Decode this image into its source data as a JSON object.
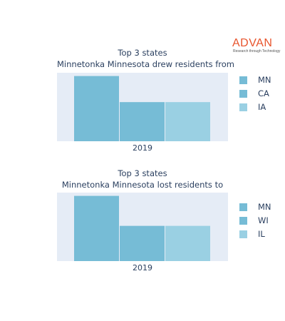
{
  "logo": {
    "text": "ADVAN",
    "tagline": "Research through Technology",
    "color": "#e8542c"
  },
  "chart_data": [
    {
      "type": "bar",
      "barmode": "group",
      "title": "Top 3 states",
      "subtitle": "Minnetonka Minnesota drew residents from",
      "categories": [
        "2019"
      ],
      "series": [
        {
          "name": "MN",
          "values": [
            100
          ],
          "color": "#76bcd6"
        },
        {
          "name": "CA",
          "values": [
            60
          ],
          "color": "#76bcd6"
        },
        {
          "name": "IA",
          "values": [
            60
          ],
          "color": "#9ad0e3"
        }
      ],
      "ylim": [
        0,
        105
      ],
      "grid": false,
      "legend": "right"
    },
    {
      "type": "bar",
      "barmode": "group",
      "title": "Top 3 states",
      "subtitle": "Minnetonka Minnesota lost residents to",
      "categories": [
        "2019"
      ],
      "series": [
        {
          "name": "MN",
          "values": [
            100
          ],
          "color": "#76bcd6"
        },
        {
          "name": "WI",
          "values": [
            54
          ],
          "color": "#76bcd6"
        },
        {
          "name": "IL",
          "values": [
            54
          ],
          "color": "#9ad0e3"
        }
      ],
      "ylim": [
        0,
        105
      ],
      "grid": false,
      "legend": "right"
    }
  ]
}
